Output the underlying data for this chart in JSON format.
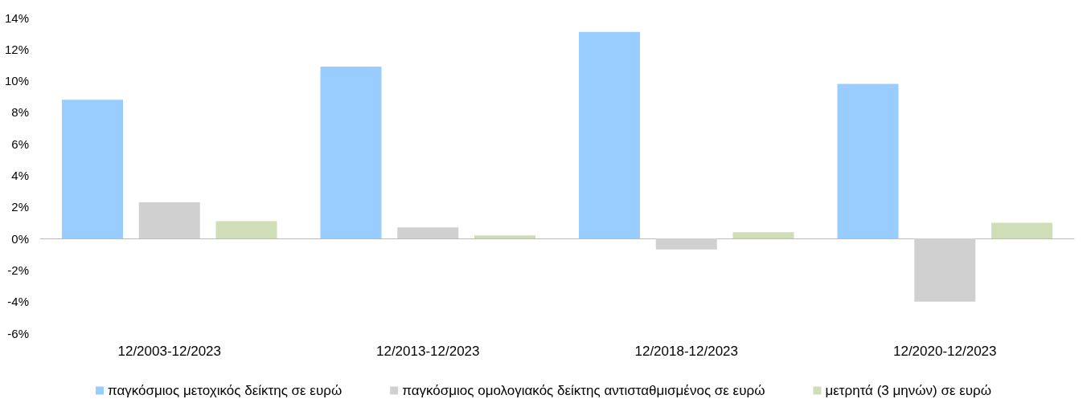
{
  "chart_data": {
    "type": "bar",
    "categories": [
      "12/2003-12/2023",
      "12/2013-12/2023",
      "12/2018-12/2023",
      "12/2020-12/2023"
    ],
    "series": [
      {
        "name": "παγκόσμιος μετοχικός δείκτης σε ευρώ",
        "color": "#99ccff",
        "values": [
          8.8,
          10.9,
          13.1,
          9.8
        ]
      },
      {
        "name": "παγκόσμιος ομολογιακός δείκτης αντισταθμισμένος σε ευρώ",
        "color": "#d0d0d0",
        "values": [
          2.3,
          0.7,
          -0.7,
          -4.0
        ]
      },
      {
        "name": "μετρητά (3 μηνών) σε ευρώ",
        "color": "#cfdeb6",
        "values": [
          1.1,
          0.2,
          0.4,
          1.0
        ]
      }
    ],
    "ylim": [
      -6,
      14
    ],
    "yticks": [
      {
        "value": -6,
        "label": "-6%"
      },
      {
        "value": -4,
        "label": "-4%"
      },
      {
        "value": -2,
        "label": "-2%"
      },
      {
        "value": 0,
        "label": "0%"
      },
      {
        "value": 2,
        "label": "2%"
      },
      {
        "value": 4,
        "label": "4%"
      },
      {
        "value": 6,
        "label": "6%"
      },
      {
        "value": 8,
        "label": "8%"
      },
      {
        "value": 10,
        "label": "10%"
      },
      {
        "value": 12,
        "label": "12%"
      },
      {
        "value": 14,
        "label": "14%"
      }
    ],
    "legend": "bottom"
  }
}
